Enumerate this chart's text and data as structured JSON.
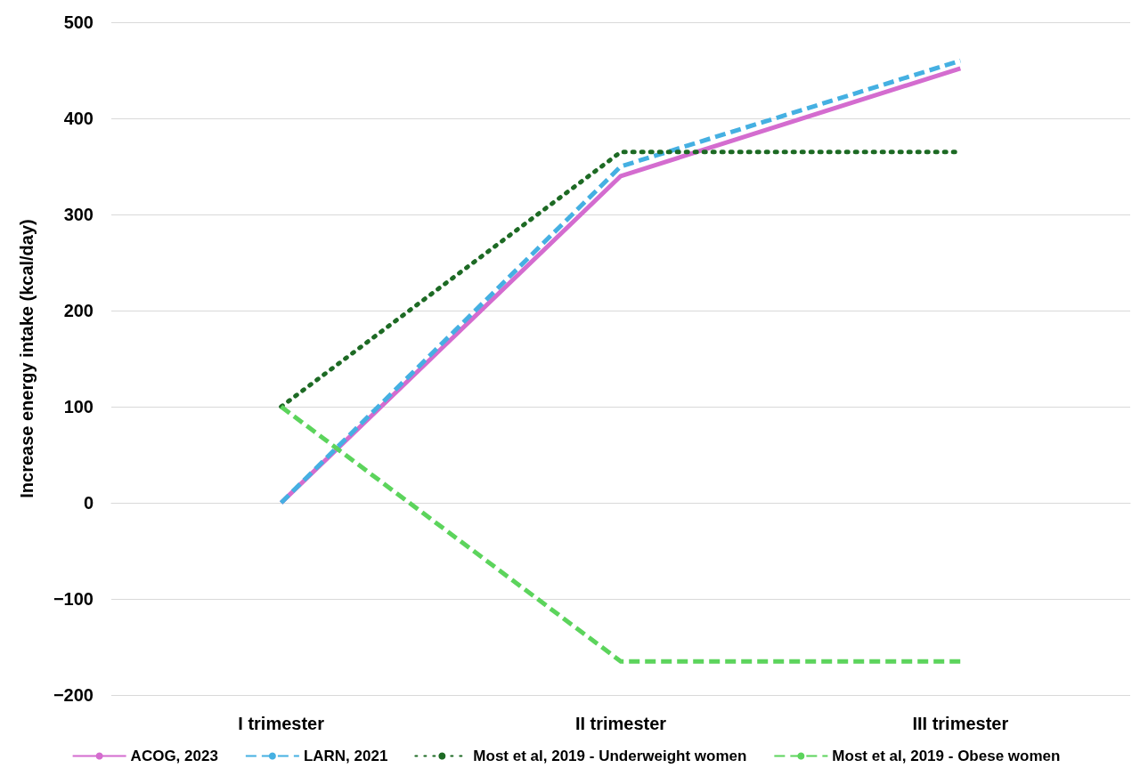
{
  "chart_data": {
    "type": "line",
    "ylabel": "Increase energy intake (kcal/day)",
    "categories": [
      "I trimester",
      "II trimester",
      "III trimester"
    ],
    "series": [
      {
        "name": "ACOG, 2023",
        "color": "#d46ccf",
        "values": [
          0,
          340,
          452
        ],
        "line_style": "solid"
      },
      {
        "name": "LARN, 2021",
        "color": "#45b0e2",
        "values": [
          0,
          350,
          460
        ],
        "line_style": "dashed"
      },
      {
        "name": "Most et al, 2019 - Underweight women",
        "color": "#1d6a24",
        "values": [
          100,
          365,
          365
        ],
        "line_style": "dotted"
      },
      {
        "name": "Most et al, 2019 - Obese women",
        "color": "#5cd45c",
        "values": [
          100,
          -165,
          -165
        ],
        "line_style": "dashed"
      }
    ],
    "ylim": [
      -200,
      500
    ],
    "yticks": [
      -200,
      -100,
      0,
      100,
      200,
      300,
      400,
      500
    ],
    "grid": "y",
    "legend": "bottom",
    "marker": "none"
  }
}
